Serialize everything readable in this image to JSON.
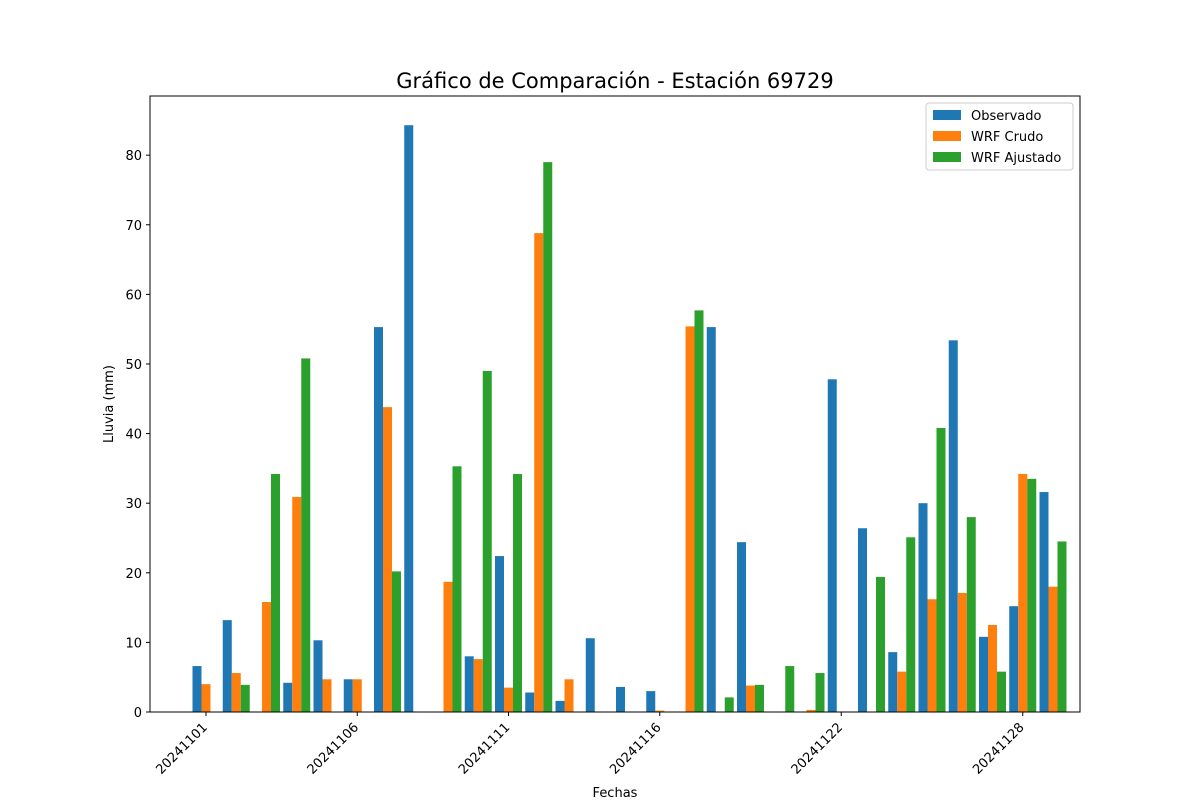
{
  "chart_data": {
    "type": "bar",
    "title": "Gráfico de Comparación - Estación 69729",
    "xlabel": "Fechas",
    "ylabel": "Lluvia (mm)",
    "ylim": [
      0,
      88.5
    ],
    "yticks": [
      0,
      10,
      20,
      30,
      40,
      50,
      60,
      70,
      80
    ],
    "legend_position": "top-right",
    "grid": false,
    "categories": [
      "20241101",
      "20241102",
      "20241103",
      "20241104",
      "20241105",
      "20241106",
      "20241107",
      "20241108",
      "20241109",
      "20241110",
      "20241111",
      "20241112",
      "20241113",
      "20241114",
      "20241115",
      "20241116",
      "20241117",
      "20241118",
      "20241119",
      "20241120",
      "20241121",
      "20241122",
      "20241123",
      "20241124",
      "20241125",
      "20241126",
      "20241127",
      "20241128",
      "20241129",
      "20241130"
    ],
    "xtick_labels": [
      "20241101",
      "20241106",
      "20241111",
      "20241116",
      "20241122",
      "20241128"
    ],
    "series": [
      {
        "name": "Observado",
        "color": "#1f77b4",
        "values": [
          6.6,
          13.2,
          0,
          4.2,
          10.3,
          4.7,
          55.3,
          84.3,
          0,
          8.0,
          22.4,
          2.8,
          1.6,
          10.6,
          3.6,
          3.0,
          0,
          55.3,
          24.4,
          0,
          0,
          47.8,
          26.4,
          8.6,
          30.0,
          53.4,
          10.8,
          15.2,
          31.6,
          0
        ]
      },
      {
        "name": "WRF Crudo",
        "color": "#ff7f0e",
        "values": [
          4.0,
          5.6,
          15.8,
          30.9,
          4.7,
          4.7,
          43.8,
          0,
          18.7,
          7.6,
          3.5,
          68.8,
          4.7,
          0,
          0,
          0.2,
          55.4,
          0,
          3.8,
          0,
          0.3,
          0,
          0,
          5.8,
          16.2,
          17.1,
          12.5,
          34.2,
          18.0,
          0
        ]
      },
      {
        "name": "WRF Ajustado",
        "color": "#2ca02c",
        "values": [
          0,
          3.9,
          34.2,
          50.8,
          0,
          0,
          20.2,
          0,
          35.3,
          49.0,
          34.2,
          79.0,
          0,
          0,
          0,
          0,
          57.7,
          2.1,
          3.9,
          6.6,
          5.6,
          0,
          19.4,
          25.1,
          40.8,
          28.0,
          5.8,
          33.5,
          24.5,
          0
        ]
      }
    ]
  }
}
